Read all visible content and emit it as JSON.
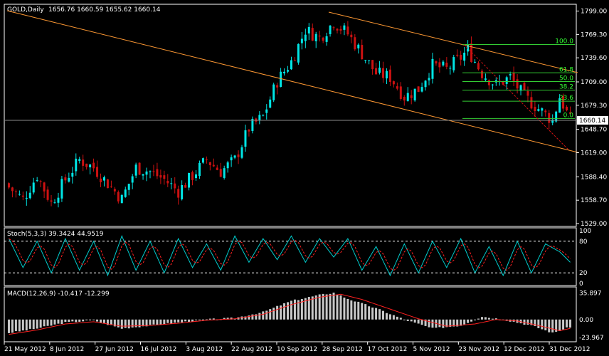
{
  "header": {
    "symbol": "GOLD",
    "timeframe": "Daily",
    "ohlc": "1656.76 1660.59 1655.62 1660.14"
  },
  "stoch_label": "Stoch(5,3,3) 39.3424 44.9519",
  "macd_label": "MACD(12,26,9) -10.417 -12.299",
  "colors": {
    "background": "#000000",
    "bull": "#00e5e5",
    "bear": "#cc1111",
    "channel": "#ff9933",
    "fib": "#33cc33",
    "fibLabel": "#33ff33",
    "signal": "#ff2020",
    "stoch_main": "#00cccc",
    "macd_hist": "#c8c8c8",
    "axis": "#ffffff"
  },
  "chart_data": {
    "type": "candlestick",
    "main": {
      "y_ticks": [
        1799.0,
        1769.3,
        1739.6,
        1709.0,
        1679.3,
        1648.7,
        1619.0,
        1588.4,
        1558.7,
        1529.0
      ],
      "ylim": [
        1529.0,
        1804.0
      ],
      "current_price": 1660.14,
      "fib_levels": [
        {
          "label": "100.0",
          "price": 1756.5
        },
        {
          "label": "61.8",
          "price": 1720.5
        },
        {
          "label": "50.0",
          "price": 1709.5
        },
        {
          "label": "38.2",
          "price": 1698.5
        },
        {
          "label": "23.6",
          "price": 1684.5
        },
        {
          "label": "0.0",
          "price": 1662.5
        }
      ],
      "x_labels": [
        "21 May 2012",
        "8 Jun 2012",
        "27 Jun 2012",
        "16 Jul 2012",
        "3 Aug 2012",
        "22 Aug 2012",
        "10 Sep 2012",
        "28 Sep 2012",
        "17 Oct 2012",
        "5 Nov 2012",
        "23 Nov 2012",
        "12 Dec 2012",
        "31 Dec 2012"
      ],
      "bars": 160,
      "close_keypoints": [
        [
          0,
          1575
        ],
        [
          4,
          1560
        ],
        [
          8,
          1590
        ],
        [
          12,
          1555
        ],
        [
          16,
          1585
        ],
        [
          20,
          1610
        ],
        [
          24,
          1600
        ],
        [
          28,
          1580
        ],
        [
          32,
          1560
        ],
        [
          36,
          1600
        ],
        [
          40,
          1595
        ],
        [
          44,
          1585
        ],
        [
          48,
          1570
        ],
        [
          52,
          1590
        ],
        [
          56,
          1610
        ],
        [
          60,
          1595
        ],
        [
          64,
          1610
        ],
        [
          68,
          1650
        ],
        [
          72,
          1665
        ],
        [
          76,
          1710
        ],
        [
          80,
          1735
        ],
        [
          84,
          1775
        ],
        [
          88,
          1765
        ],
        [
          92,
          1785
        ],
        [
          96,
          1770
        ],
        [
          100,
          1745
        ],
        [
          104,
          1720
        ],
        [
          108,
          1715
        ],
        [
          112,
          1690
        ],
        [
          116,
          1700
        ],
        [
          120,
          1730
        ],
        [
          124,
          1725
        ],
        [
          128,
          1740
        ],
        [
          130,
          1750
        ],
        [
          134,
          1720
        ],
        [
          138,
          1705
        ],
        [
          142,
          1715
        ],
        [
          146,
          1690
        ],
        [
          150,
          1675
        ],
        [
          154,
          1660
        ],
        [
          156,
          1690
        ],
        [
          159,
          1660
        ]
      ]
    },
    "stoch": {
      "levels": [
        100,
        80,
        20,
        0
      ],
      "ylim": [
        0,
        100
      ],
      "k_keypoints": [
        [
          0,
          85
        ],
        [
          4,
          30
        ],
        [
          8,
          80
        ],
        [
          12,
          20
        ],
        [
          16,
          85
        ],
        [
          20,
          25
        ],
        [
          24,
          80
        ],
        [
          28,
          15
        ],
        [
          32,
          90
        ],
        [
          36,
          25
        ],
        [
          40,
          80
        ],
        [
          44,
          20
        ],
        [
          48,
          85
        ],
        [
          52,
          30
        ],
        [
          56,
          75
        ],
        [
          60,
          25
        ],
        [
          64,
          90
        ],
        [
          68,
          40
        ],
        [
          72,
          85
        ],
        [
          76,
          45
        ],
        [
          80,
          90
        ],
        [
          84,
          40
        ],
        [
          88,
          85
        ],
        [
          92,
          50
        ],
        [
          96,
          85
        ],
        [
          100,
          25
        ],
        [
          104,
          70
        ],
        [
          108,
          15
        ],
        [
          112,
          75
        ],
        [
          116,
          20
        ],
        [
          120,
          80
        ],
        [
          124,
          30
        ],
        [
          128,
          85
        ],
        [
          132,
          20
        ],
        [
          136,
          70
        ],
        [
          140,
          15
        ],
        [
          144,
          80
        ],
        [
          148,
          20
        ],
        [
          152,
          75
        ],
        [
          156,
          60
        ],
        [
          159,
          40
        ]
      ]
    },
    "macd": {
      "ylim": [
        -28,
        40
      ],
      "tick_labels": [
        "35.897",
        "0.00",
        "-23.967"
      ],
      "tick_values": [
        35.897,
        0,
        -23.967
      ],
      "hist_keypoints": [
        [
          0,
          -18
        ],
        [
          8,
          -12
        ],
        [
          16,
          -4
        ],
        [
          24,
          -1
        ],
        [
          32,
          -12
        ],
        [
          40,
          -8
        ],
        [
          48,
          -4
        ],
        [
          56,
          0
        ],
        [
          64,
          2
        ],
        [
          72,
          10
        ],
        [
          80,
          25
        ],
        [
          88,
          33
        ],
        [
          92,
          36
        ],
        [
          96,
          28
        ],
        [
          104,
          15
        ],
        [
          112,
          0
        ],
        [
          120,
          -12
        ],
        [
          128,
          -8
        ],
        [
          134,
          4
        ],
        [
          140,
          0
        ],
        [
          148,
          -8
        ],
        [
          154,
          -18
        ],
        [
          159,
          -10
        ]
      ],
      "signal_keypoints": [
        [
          0,
          -20
        ],
        [
          8,
          -14
        ],
        [
          16,
          -6
        ],
        [
          24,
          -3
        ],
        [
          32,
          -9
        ],
        [
          40,
          -8
        ],
        [
          48,
          -5
        ],
        [
          56,
          -1
        ],
        [
          64,
          1
        ],
        [
          72,
          7
        ],
        [
          80,
          20
        ],
        [
          88,
          30
        ],
        [
          94,
          34
        ],
        [
          100,
          27
        ],
        [
          108,
          14
        ],
        [
          116,
          1
        ],
        [
          124,
          -9
        ],
        [
          132,
          -6
        ],
        [
          138,
          0
        ],
        [
          144,
          -2
        ],
        [
          150,
          -8
        ],
        [
          156,
          -15
        ],
        [
          159,
          -12
        ]
      ]
    }
  }
}
